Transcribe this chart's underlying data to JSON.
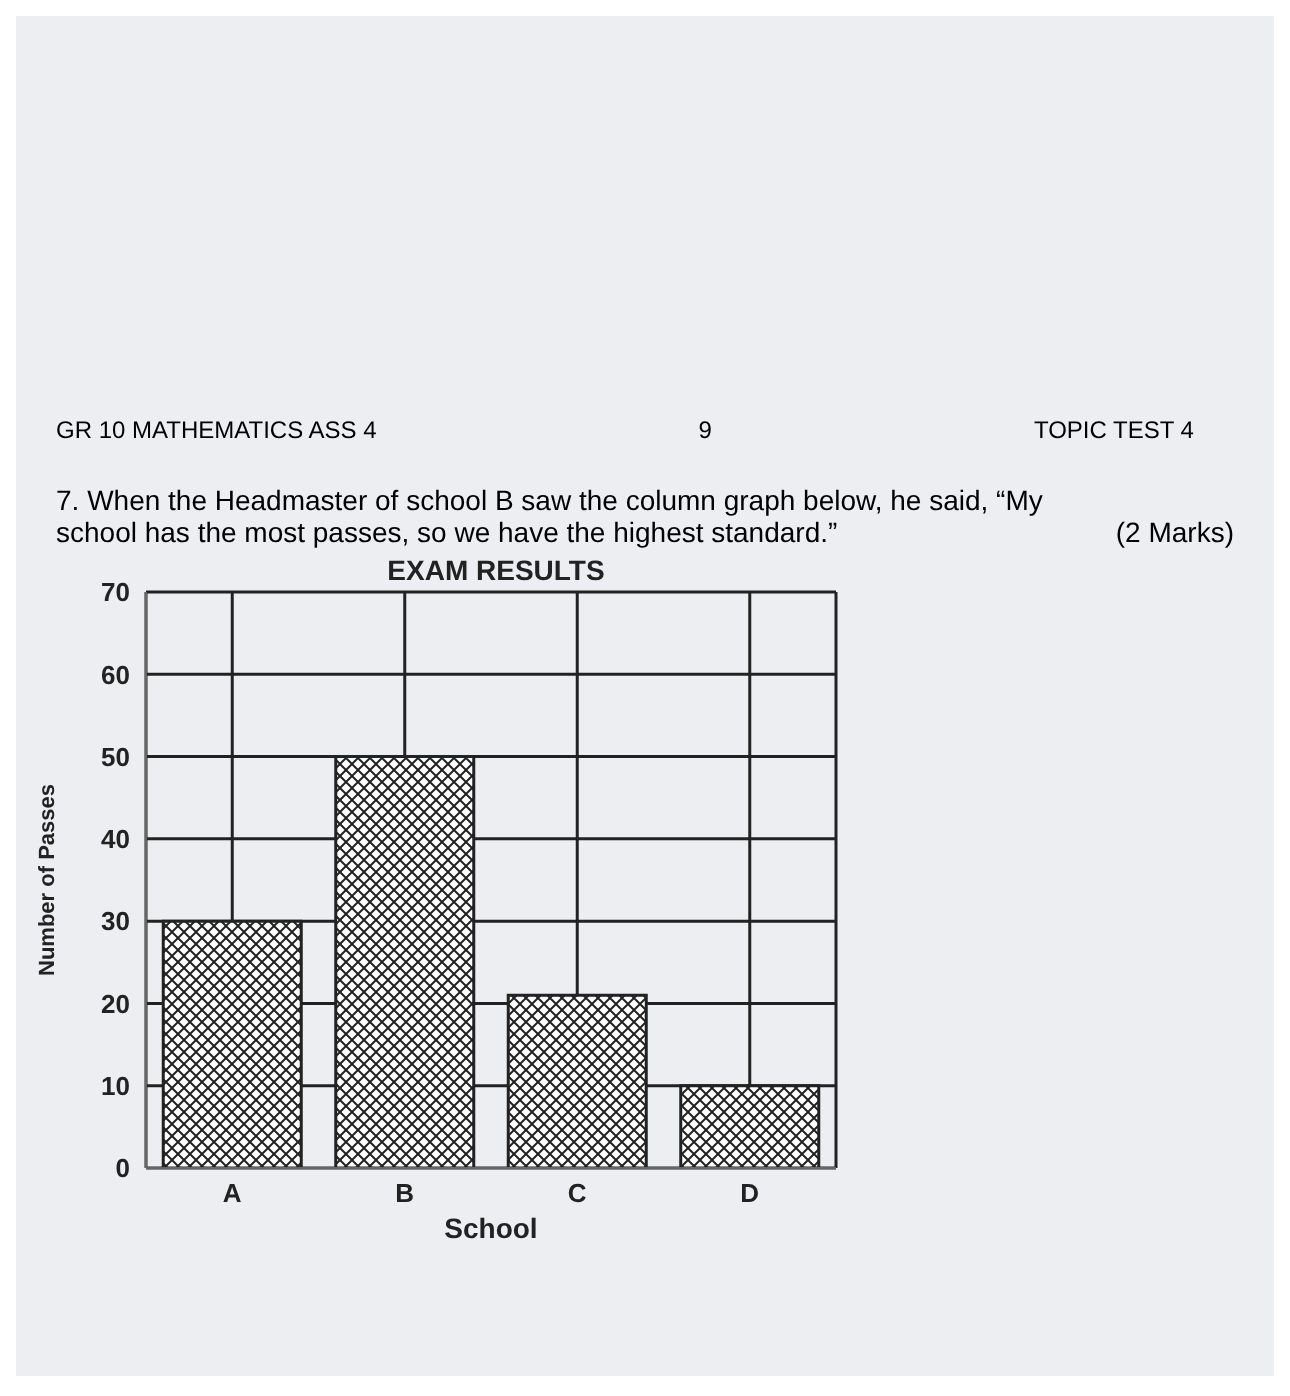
{
  "chart_data": {
    "type": "bar",
    "title": "EXAM RESULTS",
    "xlabel": "School",
    "ylabel": "Number of Passes",
    "categories": [
      "A",
      "B",
      "C",
      "D"
    ],
    "values": [
      30,
      50,
      21,
      10
    ],
    "color": "#222222",
    "ylim": [
      0,
      70
    ],
    "yticks": [
      0,
      10,
      20,
      30,
      40,
      50,
      60,
      70
    ],
    "grid": true,
    "annotations": [
      "GR 10 MATHEMATICS ASS 4",
      "9",
      "TOPIC TEST 4",
      "7.   When the Headmaster of school B saw the column graph below, he said, “My school has the most passes, so we have the highest standard.”",
      "(2 Marks)"
    ]
  }
}
